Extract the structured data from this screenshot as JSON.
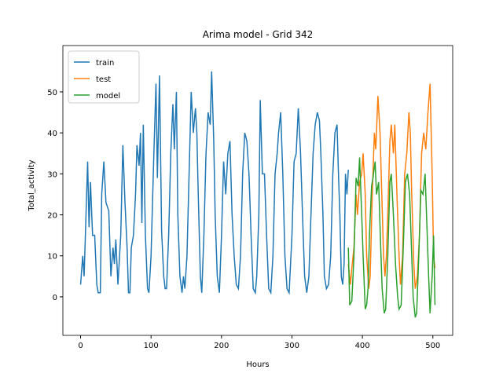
{
  "chart_data": {
    "type": "line",
    "title": "Arima model - Grid 342",
    "xlabel": "Hours",
    "ylabel": "Total_activity",
    "xlim": [
      -25.15,
      528.15
    ],
    "ylim": [
      -9.4,
      61.3
    ],
    "xticks": [
      0,
      100,
      200,
      300,
      400,
      500
    ],
    "yticks": [
      0,
      10,
      20,
      30,
      40,
      50
    ],
    "legend": "upper left",
    "series": [
      {
        "name": "train",
        "color": "#1f77b4",
        "x": [
          0,
          3,
          5,
          10,
          12,
          14,
          17,
          20,
          23,
          25,
          28,
          30,
          33,
          36,
          40,
          43,
          46,
          48,
          50,
          53,
          57,
          60,
          63,
          66,
          68,
          70,
          72,
          75,
          78,
          80,
          83,
          85,
          87,
          89,
          92,
          95,
          97,
          100,
          104,
          107,
          109,
          112,
          115,
          118,
          120,
          122,
          125,
          128,
          131,
          133,
          136,
          138,
          141,
          144,
          146,
          148,
          151,
          154,
          157,
          160,
          163,
          165,
          167,
          170,
          172,
          175,
          178,
          181,
          184,
          186,
          189,
          191,
          194,
          197,
          200,
          203,
          206,
          209,
          212,
          215,
          218,
          221,
          224,
          227,
          230,
          233,
          236,
          239,
          242,
          245,
          248,
          250,
          253,
          255,
          258,
          261,
          264,
          267,
          270,
          273,
          276,
          279,
          281,
          284,
          287,
          290,
          293,
          296,
          300,
          303,
          306,
          309,
          312,
          315,
          318,
          321,
          324,
          327,
          330,
          333,
          336,
          339,
          341,
          344,
          346,
          349,
          352,
          355,
          358,
          361,
          364,
          366,
          368,
          370,
          372,
          374,
          376,
          378,
          380
        ],
        "values": [
          3,
          10,
          5,
          33,
          17,
          28,
          15,
          15,
          3,
          1,
          1,
          25,
          33,
          23,
          21,
          5,
          12,
          8,
          14,
          3,
          15,
          37,
          23,
          12,
          1,
          1,
          12,
          15,
          25,
          37,
          32,
          40,
          18,
          42,
          15,
          2,
          1,
          10,
          35,
          52,
          29,
          54,
          16,
          5,
          2,
          2,
          15,
          35,
          47,
          36,
          50,
          20,
          5,
          1,
          5,
          2,
          10,
          30,
          50,
          40,
          46,
          40,
          25,
          5,
          1,
          15,
          35,
          45,
          42,
          55,
          38,
          20,
          5,
          1,
          15,
          33,
          25,
          35,
          38,
          20,
          10,
          3,
          2,
          10,
          30,
          40,
          38,
          30,
          15,
          2,
          1,
          5,
          20,
          48,
          30,
          30,
          15,
          2,
          1,
          10,
          30,
          35,
          40,
          45,
          30,
          10,
          2,
          1,
          15,
          33,
          35,
          46,
          36,
          20,
          5,
          1,
          5,
          20,
          35,
          42,
          45,
          43,
          35,
          20,
          5,
          2,
          3,
          10,
          30,
          40,
          42,
          30,
          20,
          5,
          3,
          8,
          30,
          25,
          31
        ]
      },
      {
        "name": "test",
        "color": "#ff7f0e",
        "x": [
          380,
          383,
          385,
          388,
          391,
          393,
          396,
          399,
          401,
          404,
          406,
          409,
          411,
          414,
          417,
          419,
          422,
          425,
          427,
          430,
          432,
          434,
          436,
          439,
          441,
          444,
          446,
          449,
          452,
          454,
          457,
          460,
          463,
          466,
          468,
          470,
          473,
          475,
          478,
          481,
          484,
          487,
          490,
          493,
          496,
          499,
          501,
          503
        ],
        "values": [
          8,
          3,
          7,
          12,
          25,
          20,
          28,
          30,
          35,
          25,
          10,
          2,
          5,
          25,
          40,
          36,
          49,
          40,
          28,
          10,
          5,
          10,
          20,
          38,
          42,
          35,
          42,
          25,
          10,
          3,
          10,
          30,
          35,
          45,
          40,
          25,
          8,
          2,
          5,
          15,
          35,
          40,
          36,
          45,
          52,
          30,
          10,
          7
        ]
      },
      {
        "name": "model",
        "color": "#2ca02c",
        "x": [
          380,
          382,
          385,
          388,
          391,
          394,
          396,
          399,
          401,
          404,
          406,
          408,
          410,
          413,
          415,
          418,
          420,
          423,
          426,
          428,
          431,
          433,
          436,
          439,
          441,
          444,
          447,
          450,
          452,
          455,
          458,
          461,
          464,
          467,
          470,
          472,
          475,
          477,
          480,
          483,
          486,
          489,
          491,
          494,
          496,
          499,
          501,
          503
        ],
        "values": [
          12,
          -2,
          -1,
          10,
          29,
          27,
          34,
          20,
          10,
          -3,
          -2,
          2,
          15,
          27,
          29,
          33,
          25,
          28,
          12,
          2,
          -4,
          -3,
          10,
          28,
          30,
          20,
          8,
          0,
          -3,
          -2,
          12,
          28,
          30,
          25,
          10,
          0,
          -5,
          -4,
          10,
          26,
          25,
          30,
          20,
          5,
          -4,
          5,
          15,
          -2
        ]
      }
    ]
  }
}
